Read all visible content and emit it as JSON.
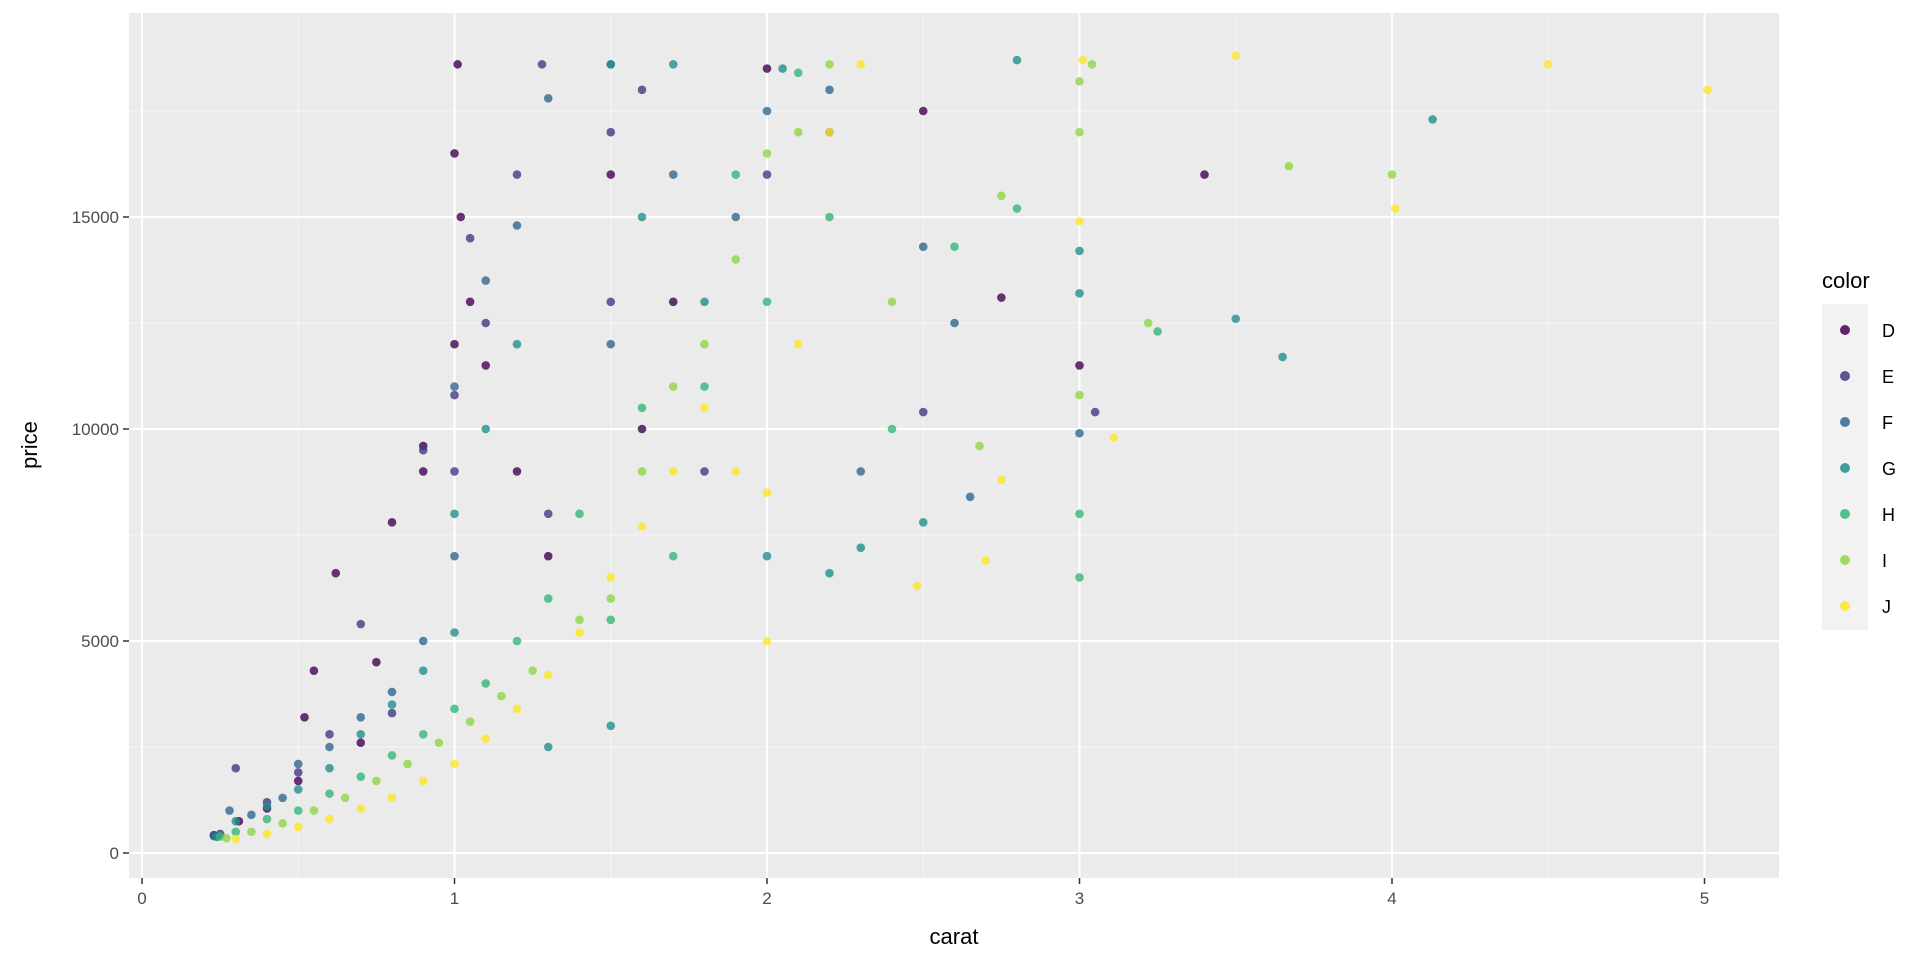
{
  "chart_data": {
    "type": "scatter",
    "title": "",
    "xlabel": "carat",
    "ylabel": "price",
    "xlim": [
      0,
      5
    ],
    "ylim": [
      0,
      19000
    ],
    "x_ticks": [
      0,
      1,
      2,
      3,
      4,
      5
    ],
    "x_tick_labels": [
      "0",
      "1",
      "2",
      "3",
      "4",
      "5"
    ],
    "y_ticks": [
      0,
      5000,
      10000,
      15000
    ],
    "y_tick_labels": [
      "0",
      "5000",
      "10000",
      "15000"
    ],
    "grid": true,
    "legend": {
      "title": "color",
      "position": "right",
      "entries": [
        {
          "name": "D",
          "color": "#440154"
        },
        {
          "name": "E",
          "color": "#443A83"
        },
        {
          "name": "F",
          "color": "#31688E"
        },
        {
          "name": "G",
          "color": "#21908C"
        },
        {
          "name": "H",
          "color": "#35B779"
        },
        {
          "name": "I",
          "color": "#8FD744"
        },
        {
          "name": "J",
          "color": "#FDE725"
        }
      ]
    },
    "series": [
      {
        "name": "D",
        "points": [
          [
            0.23,
            420
          ],
          [
            0.31,
            750
          ],
          [
            0.4,
            1050
          ],
          [
            0.5,
            1700
          ],
          [
            0.52,
            3200
          ],
          [
            0.55,
            4300
          ],
          [
            0.62,
            6600
          ],
          [
            0.7,
            2600
          ],
          [
            0.75,
            4500
          ],
          [
            0.8,
            7800
          ],
          [
            0.9,
            9000
          ],
          [
            0.9,
            9600
          ],
          [
            1.0,
            12000
          ],
          [
            1.0,
            16500
          ],
          [
            1.01,
            18600
          ],
          [
            1.02,
            15000
          ],
          [
            1.05,
            13000
          ],
          [
            1.1,
            11500
          ],
          [
            1.2,
            9000
          ],
          [
            1.3,
            7000
          ],
          [
            1.5,
            16000
          ],
          [
            1.6,
            10000
          ],
          [
            1.7,
            13000
          ],
          [
            2.0,
            18500
          ],
          [
            2.5,
            17500
          ],
          [
            2.75,
            13100
          ],
          [
            3.0,
            11500
          ],
          [
            3.4,
            16000
          ]
        ]
      },
      {
        "name": "E",
        "points": [
          [
            0.25,
            450
          ],
          [
            0.3,
            2000
          ],
          [
            0.4,
            1200
          ],
          [
            0.5,
            1900
          ],
          [
            0.6,
            2800
          ],
          [
            0.7,
            5400
          ],
          [
            0.8,
            3300
          ],
          [
            0.9,
            9500
          ],
          [
            1.0,
            9000
          ],
          [
            1.0,
            10800
          ],
          [
            1.05,
            14500
          ],
          [
            1.1,
            12500
          ],
          [
            1.2,
            16000
          ],
          [
            1.28,
            18600
          ],
          [
            1.3,
            8000
          ],
          [
            1.5,
            13000
          ],
          [
            1.5,
            17000
          ],
          [
            1.6,
            18000
          ],
          [
            1.8,
            9000
          ],
          [
            2.0,
            16000
          ],
          [
            2.2,
            17000
          ],
          [
            2.5,
            10400
          ],
          [
            3.05,
            10400
          ]
        ]
      },
      {
        "name": "F",
        "points": [
          [
            0.23,
            400
          ],
          [
            0.28,
            1000
          ],
          [
            0.35,
            900
          ],
          [
            0.45,
            1300
          ],
          [
            0.5,
            2100
          ],
          [
            0.6,
            2500
          ],
          [
            0.7,
            3200
          ],
          [
            0.8,
            3800
          ],
          [
            0.9,
            5000
          ],
          [
            1.0,
            7000
          ],
          [
            1.0,
            11000
          ],
          [
            1.1,
            13500
          ],
          [
            1.2,
            14800
          ],
          [
            1.3,
            17800
          ],
          [
            1.5,
            18600
          ],
          [
            1.5,
            12000
          ],
          [
            1.7,
            16000
          ],
          [
            1.9,
            15000
          ],
          [
            2.0,
            17500
          ],
          [
            2.2,
            18000
          ],
          [
            2.3,
            9000
          ],
          [
            2.5,
            14300
          ],
          [
            2.6,
            12500
          ],
          [
            2.65,
            8400
          ],
          [
            3.0,
            9900
          ]
        ]
      },
      {
        "name": "G",
        "points": [
          [
            0.24,
            380
          ],
          [
            0.3,
            750
          ],
          [
            0.4,
            1100
          ],
          [
            0.5,
            1500
          ],
          [
            0.6,
            2000
          ],
          [
            0.7,
            2800
          ],
          [
            0.8,
            3500
          ],
          [
            0.9,
            4300
          ],
          [
            1.0,
            5200
          ],
          [
            1.0,
            8000
          ],
          [
            1.1,
            10000
          ],
          [
            1.2,
            12000
          ],
          [
            1.3,
            2500
          ],
          [
            1.5,
            3000
          ],
          [
            1.5,
            18600
          ],
          [
            1.6,
            15000
          ],
          [
            1.7,
            18600
          ],
          [
            1.8,
            13000
          ],
          [
            2.0,
            7000
          ],
          [
            2.05,
            18500
          ],
          [
            2.2,
            6600
          ],
          [
            2.3,
            7200
          ],
          [
            2.5,
            7800
          ],
          [
            2.8,
            18700
          ],
          [
            3.0,
            13200
          ],
          [
            3.0,
            14200
          ],
          [
            3.5,
            12600
          ],
          [
            3.65,
            11700
          ],
          [
            4.13,
            17300
          ]
        ]
      },
      {
        "name": "H",
        "points": [
          [
            0.25,
            390
          ],
          [
            0.3,
            500
          ],
          [
            0.4,
            800
          ],
          [
            0.5,
            1000
          ],
          [
            0.6,
            1400
          ],
          [
            0.7,
            1800
          ],
          [
            0.8,
            2300
          ],
          [
            0.9,
            2800
          ],
          [
            1.0,
            3400
          ],
          [
            1.1,
            4000
          ],
          [
            1.2,
            5000
          ],
          [
            1.3,
            6000
          ],
          [
            1.4,
            8000
          ],
          [
            1.5,
            5500
          ],
          [
            1.6,
            10500
          ],
          [
            1.7,
            7000
          ],
          [
            1.8,
            11000
          ],
          [
            1.9,
            16000
          ],
          [
            2.0,
            13000
          ],
          [
            2.1,
            18400
          ],
          [
            2.2,
            15000
          ],
          [
            2.4,
            10000
          ],
          [
            2.6,
            14300
          ],
          [
            2.8,
            15200
          ],
          [
            3.0,
            6500
          ],
          [
            3.0,
            8000
          ],
          [
            3.25,
            12300
          ]
        ]
      },
      {
        "name": "I",
        "points": [
          [
            0.27,
            350
          ],
          [
            0.35,
            500
          ],
          [
            0.45,
            700
          ],
          [
            0.55,
            1000
          ],
          [
            0.65,
            1300
          ],
          [
            0.75,
            1700
          ],
          [
            0.85,
            2100
          ],
          [
            0.95,
            2600
          ],
          [
            1.05,
            3100
          ],
          [
            1.15,
            3700
          ],
          [
            1.25,
            4300
          ],
          [
            1.4,
            5500
          ],
          [
            1.5,
            6000
          ],
          [
            1.6,
            9000
          ],
          [
            1.7,
            11000
          ],
          [
            1.8,
            12000
          ],
          [
            1.9,
            14000
          ],
          [
            2.0,
            16500
          ],
          [
            2.1,
            17000
          ],
          [
            2.2,
            18600
          ],
          [
            2.4,
            13000
          ],
          [
            2.68,
            9600
          ],
          [
            2.75,
            15500
          ],
          [
            3.0,
            17000
          ],
          [
            3.0,
            10800
          ],
          [
            3.0,
            18200
          ],
          [
            3.04,
            18600
          ],
          [
            3.22,
            12500
          ],
          [
            3.67,
            16200
          ],
          [
            4.0,
            16000
          ]
        ]
      },
      {
        "name": "J",
        "points": [
          [
            0.3,
            330
          ],
          [
            0.4,
            450
          ],
          [
            0.5,
            620
          ],
          [
            0.6,
            800
          ],
          [
            0.7,
            1050
          ],
          [
            0.8,
            1300
          ],
          [
            0.9,
            1700
          ],
          [
            1.0,
            2100
          ],
          [
            1.1,
            2700
          ],
          [
            1.2,
            3400
          ],
          [
            1.3,
            4200
          ],
          [
            1.4,
            5200
          ],
          [
            1.5,
            6500
          ],
          [
            1.6,
            7700
          ],
          [
            1.7,
            9000
          ],
          [
            1.8,
            10500
          ],
          [
            1.9,
            9000
          ],
          [
            2.0,
            5000
          ],
          [
            2.0,
            8500
          ],
          [
            2.1,
            12000
          ],
          [
            2.2,
            17000
          ],
          [
            2.3,
            18600
          ],
          [
            2.48,
            6300
          ],
          [
            2.7,
            6900
          ],
          [
            2.75,
            8800
          ],
          [
            3.0,
            14900
          ],
          [
            3.01,
            18700
          ],
          [
            3.11,
            9800
          ],
          [
            3.5,
            18800
          ],
          [
            4.01,
            15200
          ],
          [
            4.5,
            18600
          ],
          [
            5.01,
            18000
          ]
        ]
      }
    ]
  }
}
